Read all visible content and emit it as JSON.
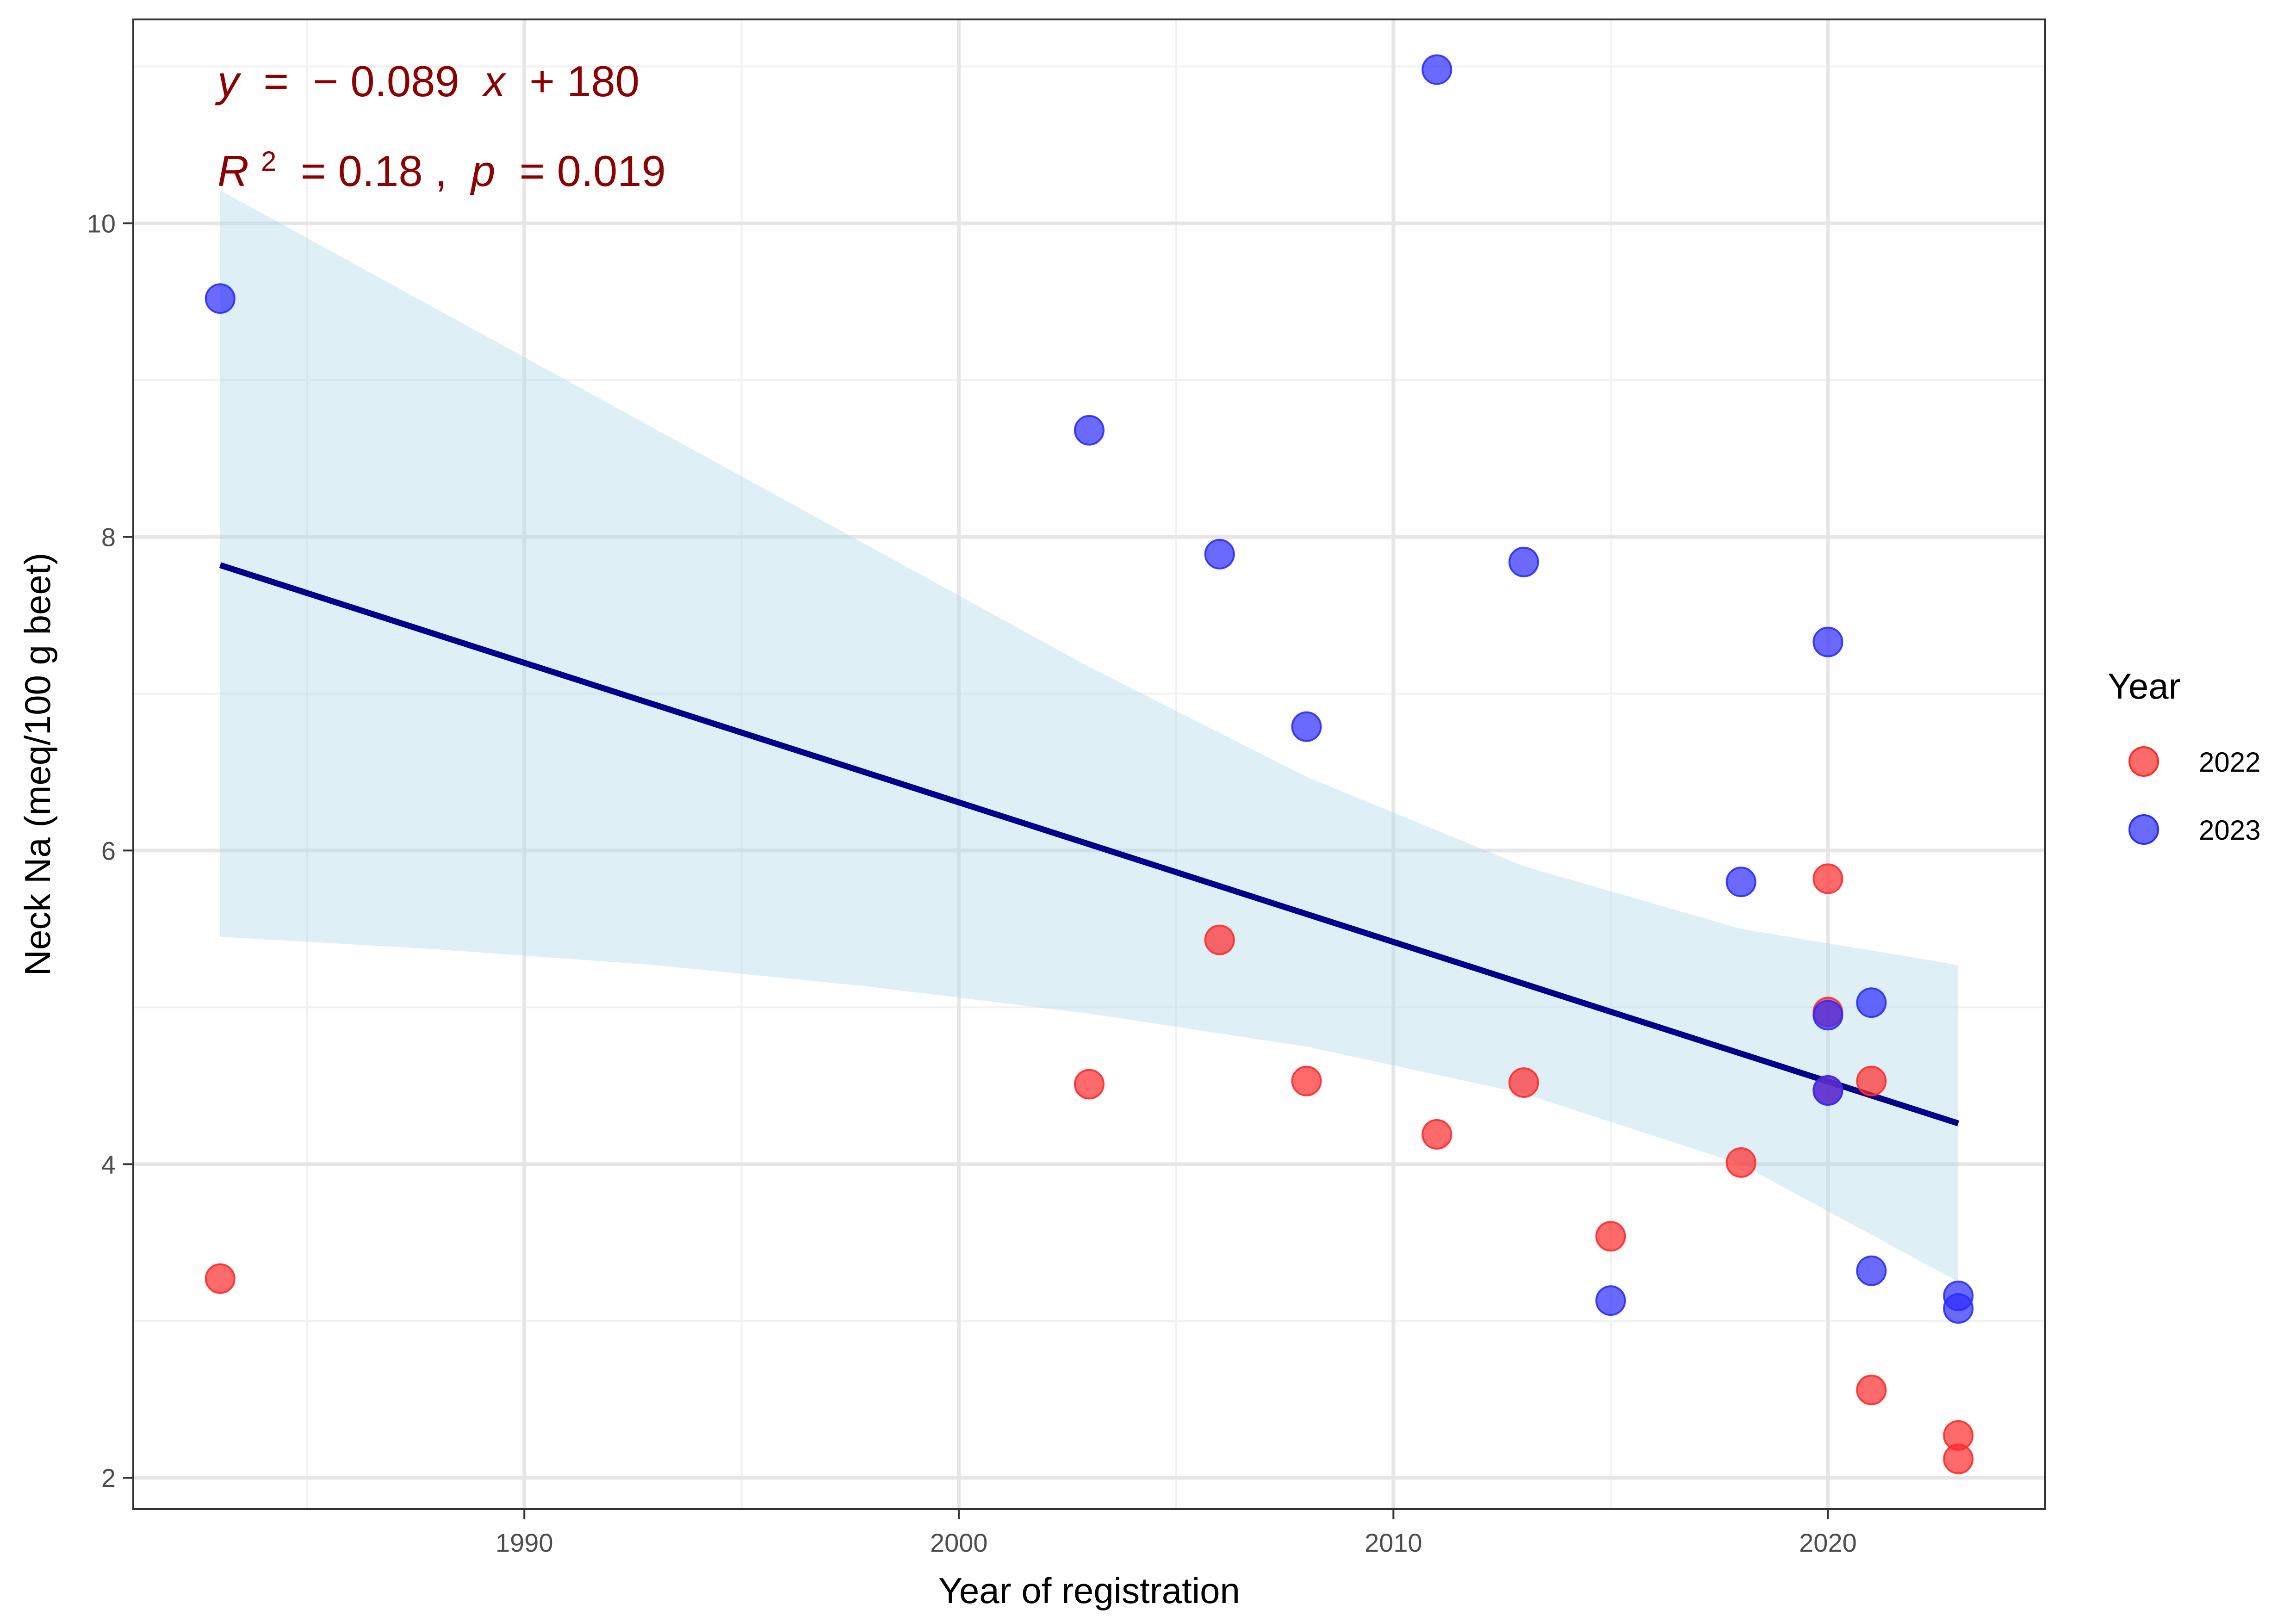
{
  "chart_data": {
    "type": "scatter",
    "xlabel": "Year of registration",
    "ylabel": "Neck Na (meq/100 g beet)",
    "xlim": [
      1981,
      2025
    ],
    "ylim": [
      1.8,
      11.3
    ],
    "x_ticks": [
      1990,
      2000,
      2010,
      2020
    ],
    "y_ticks": [
      2,
      4,
      6,
      8,
      10
    ],
    "grid": true,
    "legend": {
      "title": "Year",
      "placement": "right",
      "entries": [
        {
          "label": "2022",
          "color": "#ff2b2b"
        },
        {
          "label": "2023",
          "color": "#2b2bff"
        }
      ]
    },
    "series": [
      {
        "name": "2022",
        "color": "#ff2b2b",
        "points": [
          {
            "x": 1983,
            "y": 3.27
          },
          {
            "x": 2003,
            "y": 4.51
          },
          {
            "x": 2006,
            "y": 5.43
          },
          {
            "x": 2008,
            "y": 4.53
          },
          {
            "x": 2011,
            "y": 4.19
          },
          {
            "x": 2013,
            "y": 4.52
          },
          {
            "x": 2015,
            "y": 3.54
          },
          {
            "x": 2018,
            "y": 4.01
          },
          {
            "x": 2020,
            "y": 5.82
          },
          {
            "x": 2020,
            "y": 4.97
          },
          {
            "x": 2020,
            "y": 4.47
          },
          {
            "x": 2021,
            "y": 4.53
          },
          {
            "x": 2021,
            "y": 2.56
          },
          {
            "x": 2023,
            "y": 2.27
          },
          {
            "x": 2023,
            "y": 2.12
          }
        ]
      },
      {
        "name": "2023",
        "color": "#2b2bff",
        "points": [
          {
            "x": 1983,
            "y": 9.52
          },
          {
            "x": 2003,
            "y": 8.68
          },
          {
            "x": 2006,
            "y": 7.89
          },
          {
            "x": 2008,
            "y": 6.79
          },
          {
            "x": 2011,
            "y": 10.98
          },
          {
            "x": 2013,
            "y": 7.84
          },
          {
            "x": 2015,
            "y": 3.13
          },
          {
            "x": 2018,
            "y": 5.8
          },
          {
            "x": 2020,
            "y": 7.33
          },
          {
            "x": 2020,
            "y": 4.95
          },
          {
            "x": 2020,
            "y": 4.47
          },
          {
            "x": 2021,
            "y": 5.03
          },
          {
            "x": 2021,
            "y": 3.32
          },
          {
            "x": 2023,
            "y": 3.16
          },
          {
            "x": 2023,
            "y": 3.08
          }
        ]
      }
    ],
    "regression": {
      "color": "#00008b",
      "x_range": [
        1983,
        2023
      ],
      "y_start": 7.82,
      "y_end": 4.26,
      "ci_band_color": "#add8e6",
      "ci_band": [
        {
          "x": 1983,
          "lo": 5.45,
          "hi": 10.21
        },
        {
          "x": 1988,
          "lo": 5.37,
          "hi": 9.45
        },
        {
          "x": 1993,
          "lo": 5.27,
          "hi": 8.69
        },
        {
          "x": 1998,
          "lo": 5.13,
          "hi": 7.93
        },
        {
          "x": 2003,
          "lo": 4.96,
          "hi": 7.17
        },
        {
          "x": 2008,
          "lo": 4.75,
          "hi": 6.47
        },
        {
          "x": 2013,
          "lo": 4.45,
          "hi": 5.9
        },
        {
          "x": 2018,
          "lo": 4.0,
          "hi": 5.5
        },
        {
          "x": 2023,
          "lo": 3.25,
          "hi": 5.27
        }
      ]
    },
    "annotations": {
      "equation": {
        "y_sym": "y",
        "eq": " = ",
        "minus": "−",
        "coef": "0.089 ",
        "x_sym": "x",
        "plus": " + 180"
      },
      "stats": {
        "r_sym": "R",
        "sup": "2",
        "r_val": " = 0.18 , ",
        "p_sym": "p",
        "p_val": " = 0.019"
      }
    }
  }
}
